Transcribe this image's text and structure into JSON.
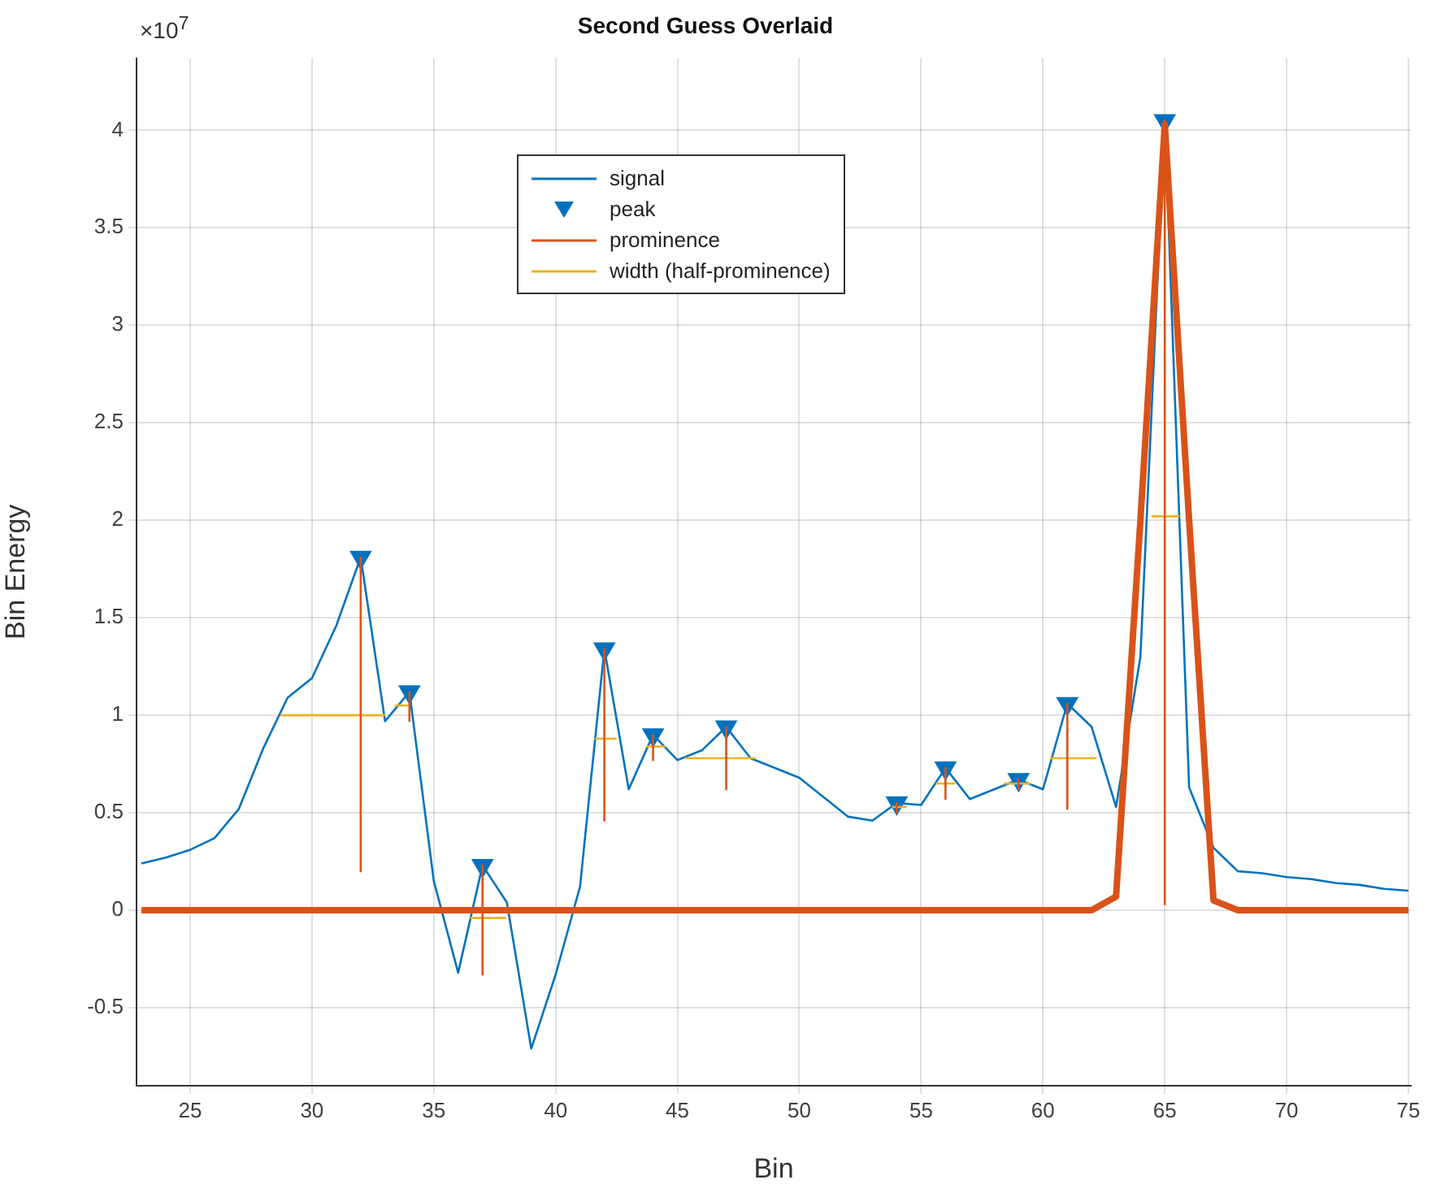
{
  "chart_data": {
    "type": "line",
    "title": "Second Guess Overlaid",
    "xlabel": "Bin",
    "ylabel": "Bin Energy",
    "annotations": [
      "×10$^{7}$"
    ],
    "xlim": [
      22.8,
      75.1
    ],
    "ylim": [
      -0.9,
      4.37
    ],
    "xticks": [
      25,
      30,
      35,
      40,
      45,
      50,
      55,
      60,
      65,
      70,
      75
    ],
    "yticks": [
      -0.5,
      0,
      0.5,
      1,
      1.5,
      2,
      2.5,
      3,
      3.5,
      4
    ],
    "grid": true,
    "legend": "top",
    "series": [
      {
        "name": "signal",
        "color": "#0072bd",
        "x": [
          23,
          24,
          25,
          26,
          27,
          28,
          29,
          30,
          31,
          32,
          33,
          34,
          35,
          36,
          37,
          38,
          39,
          40,
          41,
          42,
          43,
          44,
          45,
          46,
          47,
          48,
          49,
          50,
          51,
          52,
          53,
          54,
          55,
          56,
          57,
          58,
          59,
          60,
          61,
          62,
          63,
          64,
          65,
          66,
          67,
          68,
          69,
          70,
          71,
          72,
          73,
          74,
          75
        ],
        "values": [
          0.24,
          0.27,
          0.31,
          0.37,
          0.52,
          0.83,
          1.09,
          1.19,
          1.46,
          1.81,
          0.97,
          1.12,
          0.15,
          -0.32,
          0.23,
          0.04,
          -0.71,
          -0.33,
          0.12,
          1.34,
          0.62,
          0.9,
          0.77,
          0.82,
          0.94,
          0.78,
          0.73,
          0.68,
          0.58,
          0.48,
          0.46,
          0.55,
          0.54,
          0.73,
          0.57,
          0.62,
          0.67,
          0.62,
          1.06,
          0.94,
          0.53,
          1.3,
          4.05,
          0.63,
          0.32,
          0.2,
          0.19,
          0.17,
          0.16,
          0.14,
          0.13,
          0.11,
          0.1
        ]
      },
      {
        "color": "#d95319",
        "x": [
          23,
          62,
          63,
          64,
          65,
          66,
          67,
          68,
          75
        ],
        "values": [
          0,
          0,
          0.07,
          2.0,
          4.03,
          2.0,
          0.05,
          0,
          0
        ]
      },
      {
        "name": "peak",
        "type": "scatter",
        "color": "#0072bd",
        "marker": "triangle",
        "x": [
          32,
          34,
          37,
          42,
          44,
          47,
          54,
          56,
          59,
          61,
          65
        ],
        "values": [
          1.81,
          1.12,
          0.23,
          1.34,
          0.9,
          0.94,
          0.55,
          0.73,
          0.67,
          1.06,
          4.05
        ]
      },
      {
        "name": "prominence",
        "color": "#d95319",
        "x": [
          32,
          32
        ],
        "values": [
          1.81,
          0.2
        ]
      },
      {
        "color": "#d95319",
        "x": [
          34,
          34
        ],
        "values": [
          1.12,
          0.97
        ]
      },
      {
        "color": "#d95319",
        "x": [
          37,
          37
        ],
        "values": [
          0.23,
          -0.33
        ]
      },
      {
        "color": "#d95319",
        "x": [
          42,
          42
        ],
        "values": [
          1.34,
          0.46
        ]
      },
      {
        "color": "#d95319",
        "x": [
          44,
          44
        ],
        "values": [
          0.9,
          0.77
        ]
      },
      {
        "color": "#d95319",
        "x": [
          47,
          47
        ],
        "values": [
          0.94,
          0.62
        ]
      },
      {
        "color": "#d95319",
        "x": [
          54,
          54
        ],
        "values": [
          0.55,
          0.5
        ]
      },
      {
        "color": "#d95319",
        "x": [
          56,
          56
        ],
        "values": [
          0.73,
          0.57
        ]
      },
      {
        "color": "#d95319",
        "x": [
          59,
          59
        ],
        "values": [
          0.67,
          0.62
        ]
      },
      {
        "color": "#d95319",
        "x": [
          61,
          61
        ],
        "values": [
          1.06,
          0.52
        ]
      },
      {
        "color": "#d95319",
        "x": [
          65,
          65
        ],
        "values": [
          4.05,
          0.03
        ]
      },
      {
        "name": "width (half-prominence)",
        "color": "#edb120",
        "x": [
          28.7,
          33.0
        ],
        "values": [
          1.0,
          1.0
        ]
      },
      {
        "color": "#edb120",
        "x": [
          33.4,
          33.95
        ],
        "values": [
          1.05,
          1.05
        ]
      },
      {
        "color": "#edb120",
        "x": [
          36.5,
          37.97
        ],
        "values": [
          -0.04,
          -0.04
        ]
      },
      {
        "color": "#edb120",
        "x": [
          41.6,
          42.5
        ],
        "values": [
          0.88,
          0.88
        ]
      },
      {
        "color": "#edb120",
        "x": [
          43.7,
          44.5
        ],
        "values": [
          0.84,
          0.84
        ]
      },
      {
        "color": "#edb120",
        "x": [
          45.3,
          48.2
        ],
        "values": [
          0.78,
          0.78
        ]
      },
      {
        "color": "#edb120",
        "x": [
          53.8,
          54.4
        ],
        "values": [
          0.53,
          0.53
        ]
      },
      {
        "color": "#edb120",
        "x": [
          55.6,
          56.4
        ],
        "values": [
          0.65,
          0.65
        ]
      },
      {
        "color": "#edb120",
        "x": [
          58.4,
          59.5
        ],
        "values": [
          0.65,
          0.65
        ]
      },
      {
        "color": "#edb120",
        "x": [
          60.3,
          62.2
        ],
        "values": [
          0.78,
          0.78
        ]
      },
      {
        "color": "#edb120",
        "x": [
          64.45,
          65.6
        ],
        "values": [
          2.02,
          2.02
        ]
      }
    ]
  }
}
